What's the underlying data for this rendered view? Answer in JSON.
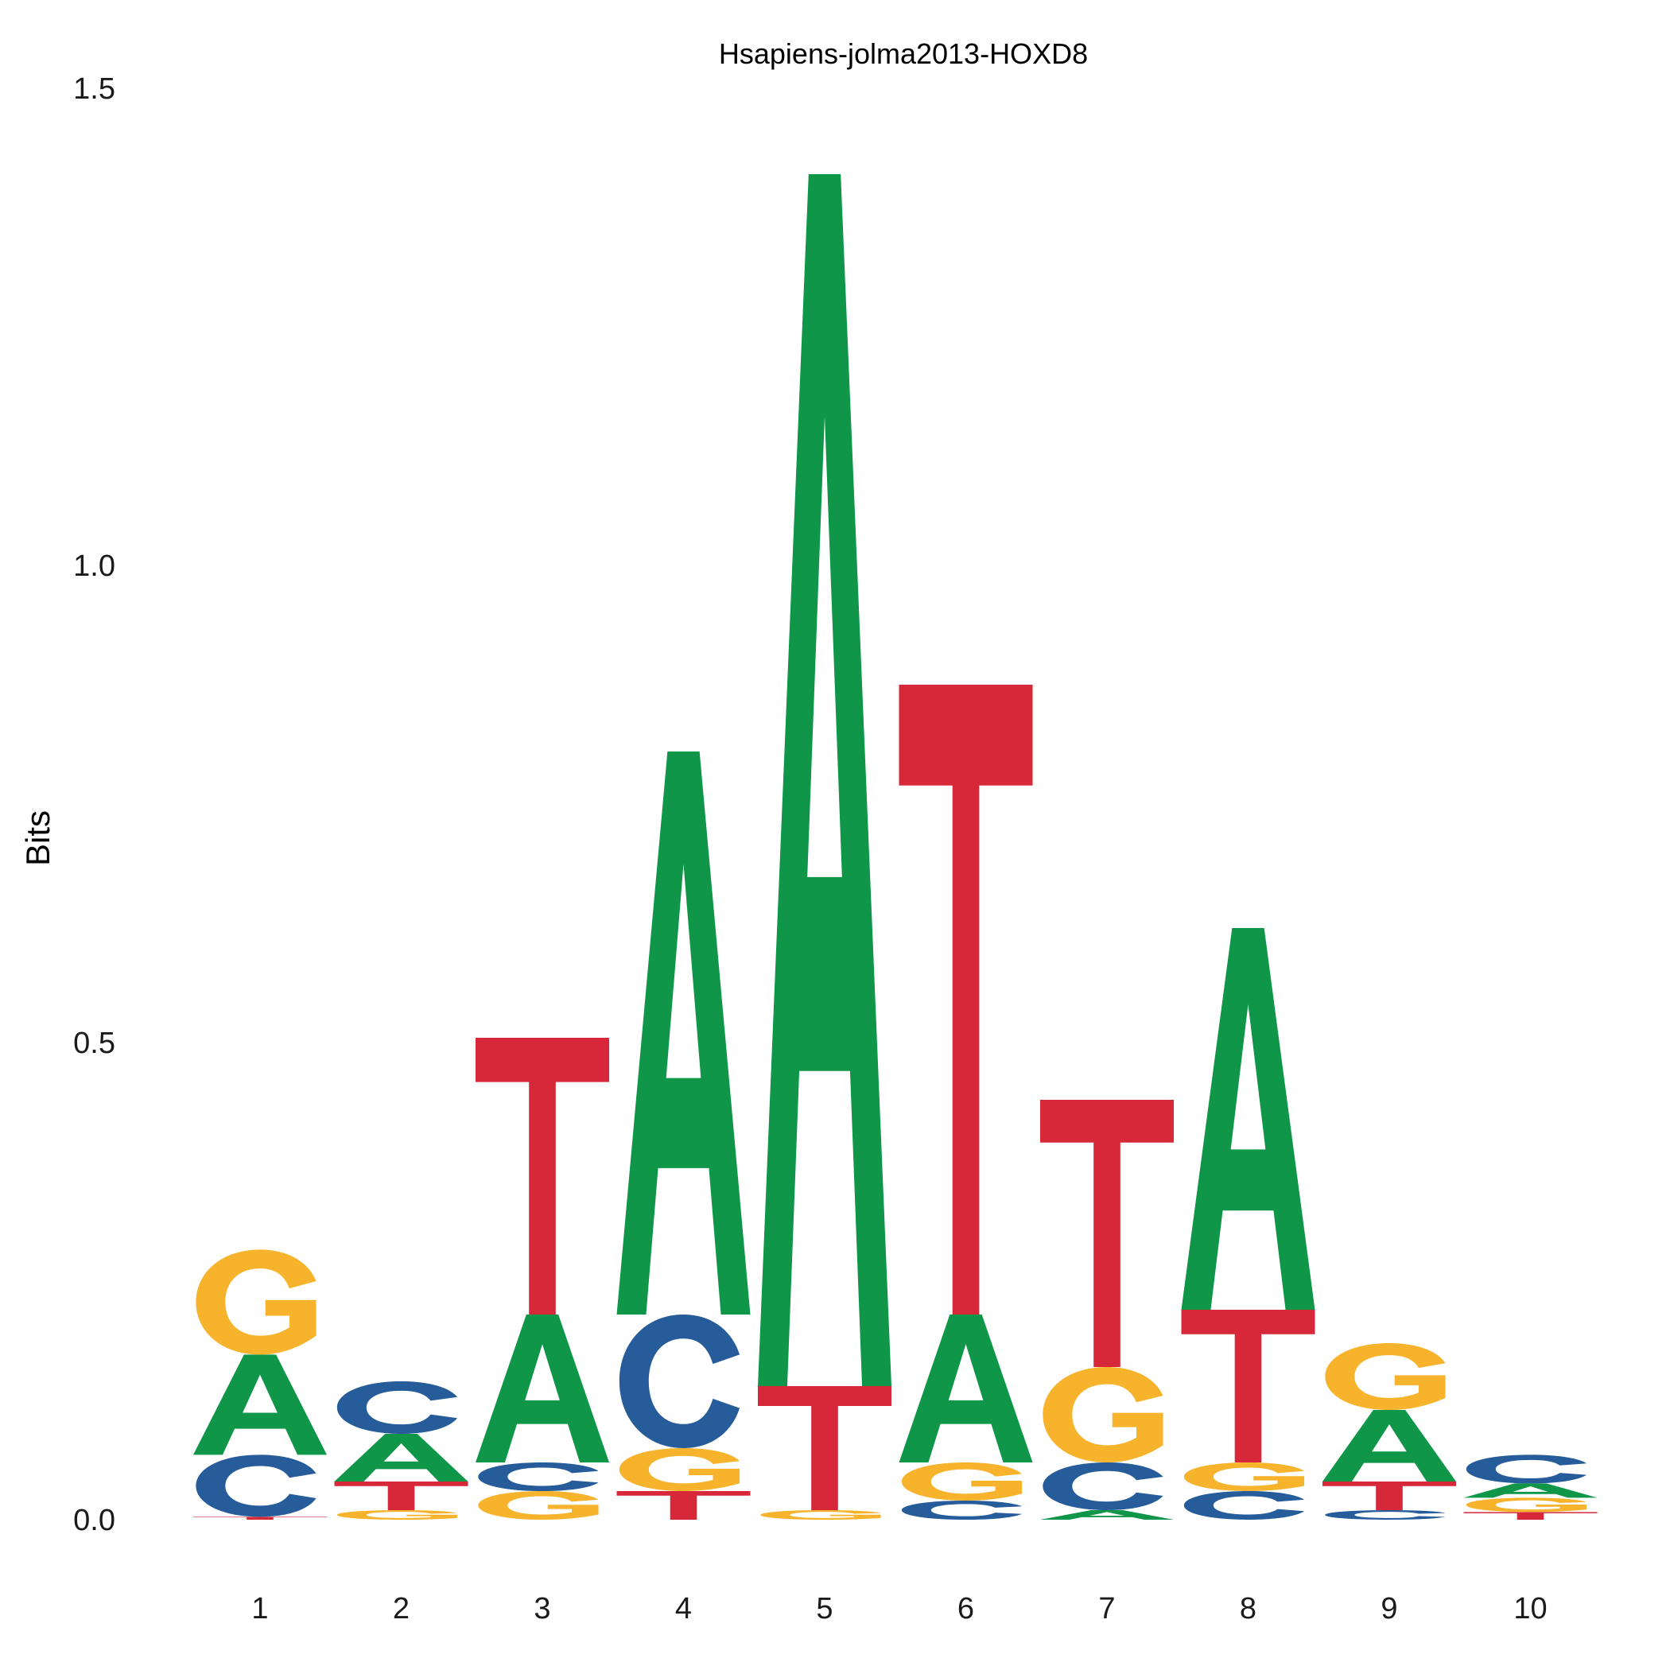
{
  "chart_data": {
    "type": "sequence-logo",
    "title": "Hsapiens-jolma2013-HOXD8",
    "xlabel": "",
    "ylabel": "Bits",
    "ylim": [
      0,
      1.5
    ],
    "y_ticks": [
      "0.0",
      "0.5",
      "1.0",
      "1.5"
    ],
    "y_tick_values": [
      0,
      0.5,
      1.0,
      1.5
    ],
    "grid": false,
    "legend": "none",
    "colors": {
      "A": "#109648",
      "C": "#255C99",
      "G": "#F7B32B",
      "T": "#D62839"
    },
    "positions": [
      {
        "label": "1",
        "stack": [
          {
            "letter": "T",
            "bits": 0.003
          },
          {
            "letter": "C",
            "bits": 0.065
          },
          {
            "letter": "A",
            "bits": 0.105
          },
          {
            "letter": "G",
            "bits": 0.11
          }
        ]
      },
      {
        "label": "2",
        "stack": [
          {
            "letter": "G",
            "bits": 0.01
          },
          {
            "letter": "T",
            "bits": 0.03
          },
          {
            "letter": "A",
            "bits": 0.05
          },
          {
            "letter": "C",
            "bits": 0.055
          }
        ]
      },
      {
        "label": "3",
        "stack": [
          {
            "letter": "G",
            "bits": 0.03
          },
          {
            "letter": "C",
            "bits": 0.03
          },
          {
            "letter": "A",
            "bits": 0.155
          },
          {
            "letter": "T",
            "bits": 0.29
          }
        ]
      },
      {
        "label": "4",
        "stack": [
          {
            "letter": "T",
            "bits": 0.03
          },
          {
            "letter": "G",
            "bits": 0.045
          },
          {
            "letter": "C",
            "bits": 0.14
          },
          {
            "letter": "A",
            "bits": 0.59
          }
        ]
      },
      {
        "label": "5",
        "stack": [
          {
            "letter": "G",
            "bits": 0.01
          },
          {
            "letter": "T",
            "bits": 0.13
          },
          {
            "letter": "A",
            "bits": 1.27
          }
        ]
      },
      {
        "label": "6",
        "stack": [
          {
            "letter": "C",
            "bits": 0.02
          },
          {
            "letter": "G",
            "bits": 0.04
          },
          {
            "letter": "A",
            "bits": 0.155
          },
          {
            "letter": "T",
            "bits": 0.66
          }
        ]
      },
      {
        "label": "7",
        "stack": [
          {
            "letter": "A",
            "bits": 0.01
          },
          {
            "letter": "C",
            "bits": 0.05
          },
          {
            "letter": "G",
            "bits": 0.1
          },
          {
            "letter": "T",
            "bits": 0.28
          }
        ]
      },
      {
        "label": "8",
        "stack": [
          {
            "letter": "C",
            "bits": 0.03
          },
          {
            "letter": "G",
            "bits": 0.03
          },
          {
            "letter": "T",
            "bits": 0.16
          },
          {
            "letter": "A",
            "bits": 0.4
          }
        ]
      },
      {
        "label": "9",
        "stack": [
          {
            "letter": "C",
            "bits": 0.01
          },
          {
            "letter": "T",
            "bits": 0.03
          },
          {
            "letter": "A",
            "bits": 0.075
          },
          {
            "letter": "G",
            "bits": 0.07
          }
        ]
      },
      {
        "label": "10",
        "stack": [
          {
            "letter": "T",
            "bits": 0.008
          },
          {
            "letter": "G",
            "bits": 0.015
          },
          {
            "letter": "A",
            "bits": 0.015
          },
          {
            "letter": "C",
            "bits": 0.03
          }
        ]
      }
    ]
  }
}
